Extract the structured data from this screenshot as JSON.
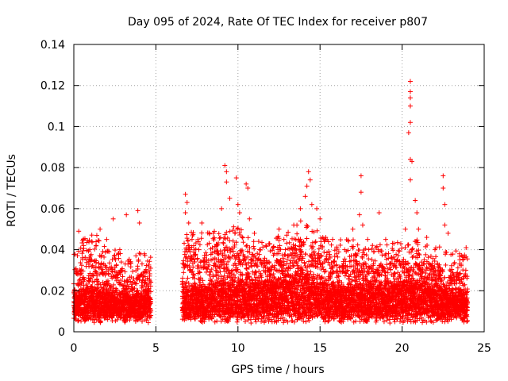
{
  "chart_data": {
    "type": "scatter",
    "title": "Day 095 of 2024, Rate Of TEC Index for receiver p807",
    "xlabel": "GPS time / hours",
    "ylabel": "ROTI / TECUs",
    "xlim": [
      0,
      25
    ],
    "ylim": [
      0,
      0.14
    ],
    "x_ticks": [
      "0",
      "5",
      "10",
      "15",
      "20",
      "25"
    ],
    "y_ticks": [
      "0",
      "0.02",
      "0.04",
      "0.06",
      "0.08",
      "0.1",
      "0.12",
      "0.14"
    ],
    "grid": true,
    "marker": "+",
    "color": "#ff0000",
    "data_gap_hours": [
      4.7,
      6.6
    ],
    "envelope": [
      {
        "x": 0.0,
        "base": 0.015,
        "top": 0.03
      },
      {
        "x": 0.5,
        "base": 0.016,
        "top": 0.035
      },
      {
        "x": 1.0,
        "base": 0.017,
        "top": 0.038
      },
      {
        "x": 1.5,
        "base": 0.016,
        "top": 0.035
      },
      {
        "x": 2.0,
        "base": 0.015,
        "top": 0.032
      },
      {
        "x": 2.5,
        "base": 0.014,
        "top": 0.03
      },
      {
        "x": 3.0,
        "base": 0.014,
        "top": 0.028
      },
      {
        "x": 3.5,
        "base": 0.013,
        "top": 0.025
      },
      {
        "x": 4.0,
        "base": 0.014,
        "top": 0.03
      },
      {
        "x": 4.6,
        "base": 0.015,
        "top": 0.035
      },
      {
        "x": 6.7,
        "base": 0.018,
        "top": 0.04
      },
      {
        "x": 8.0,
        "base": 0.018,
        "top": 0.038
      },
      {
        "x": 9.0,
        "base": 0.02,
        "top": 0.04
      },
      {
        "x": 10.0,
        "base": 0.02,
        "top": 0.042
      },
      {
        "x": 11.0,
        "base": 0.02,
        "top": 0.035
      },
      {
        "x": 12.0,
        "base": 0.02,
        "top": 0.036
      },
      {
        "x": 13.0,
        "base": 0.022,
        "top": 0.04
      },
      {
        "x": 14.0,
        "base": 0.025,
        "top": 0.045
      },
      {
        "x": 15.0,
        "base": 0.02,
        "top": 0.038
      },
      {
        "x": 16.0,
        "base": 0.018,
        "top": 0.035
      },
      {
        "x": 17.0,
        "base": 0.018,
        "top": 0.035
      },
      {
        "x": 18.0,
        "base": 0.018,
        "top": 0.032
      },
      {
        "x": 19.0,
        "base": 0.018,
        "top": 0.034
      },
      {
        "x": 20.0,
        "base": 0.02,
        "top": 0.035
      },
      {
        "x": 21.0,
        "base": 0.02,
        "top": 0.036
      },
      {
        "x": 22.0,
        "base": 0.018,
        "top": 0.032
      },
      {
        "x": 23.0,
        "base": 0.016,
        "top": 0.03
      },
      {
        "x": 24.0,
        "base": 0.015,
        "top": 0.028
      }
    ],
    "spikes": [
      {
        "x": 0.3,
        "y": 0.049
      },
      {
        "x": 0.6,
        "y": 0.042
      },
      {
        "x": 1.1,
        "y": 0.044
      },
      {
        "x": 1.4,
        "y": 0.047
      },
      {
        "x": 1.6,
        "y": 0.05
      },
      {
        "x": 2.0,
        "y": 0.045
      },
      {
        "x": 2.4,
        "y": 0.055
      },
      {
        "x": 2.8,
        "y": 0.04
      },
      {
        "x": 3.2,
        "y": 0.057
      },
      {
        "x": 3.9,
        "y": 0.059
      },
      {
        "x": 4.0,
        "y": 0.053
      },
      {
        "x": 4.3,
        "y": 0.038
      },
      {
        "x": 6.8,
        "y": 0.067
      },
      {
        "x": 6.9,
        "y": 0.063
      },
      {
        "x": 6.8,
        "y": 0.058
      },
      {
        "x": 7.0,
        "y": 0.053
      },
      {
        "x": 7.2,
        "y": 0.045
      },
      {
        "x": 7.8,
        "y": 0.053
      },
      {
        "x": 8.5,
        "y": 0.048
      },
      {
        "x": 9.0,
        "y": 0.06
      },
      {
        "x": 9.2,
        "y": 0.081
      },
      {
        "x": 9.3,
        "y": 0.078
      },
      {
        "x": 9.3,
        "y": 0.073
      },
      {
        "x": 9.5,
        "y": 0.065
      },
      {
        "x": 9.9,
        "y": 0.075
      },
      {
        "x": 10.0,
        "y": 0.062
      },
      {
        "x": 10.1,
        "y": 0.058
      },
      {
        "x": 10.5,
        "y": 0.072
      },
      {
        "x": 10.6,
        "y": 0.07
      },
      {
        "x": 10.7,
        "y": 0.055
      },
      {
        "x": 11.0,
        "y": 0.048
      },
      {
        "x": 11.7,
        "y": 0.042
      },
      {
        "x": 12.5,
        "y": 0.05
      },
      {
        "x": 12.8,
        "y": 0.045
      },
      {
        "x": 13.4,
        "y": 0.052
      },
      {
        "x": 13.8,
        "y": 0.06
      },
      {
        "x": 14.1,
        "y": 0.066
      },
      {
        "x": 14.2,
        "y": 0.071
      },
      {
        "x": 14.3,
        "y": 0.078
      },
      {
        "x": 14.4,
        "y": 0.074
      },
      {
        "x": 14.5,
        "y": 0.062
      },
      {
        "x": 14.8,
        "y": 0.06
      },
      {
        "x": 15.0,
        "y": 0.055
      },
      {
        "x": 15.3,
        "y": 0.045
      },
      {
        "x": 16.0,
        "y": 0.038
      },
      {
        "x": 16.5,
        "y": 0.04
      },
      {
        "x": 17.0,
        "y": 0.05
      },
      {
        "x": 17.5,
        "y": 0.076
      },
      {
        "x": 17.5,
        "y": 0.068
      },
      {
        "x": 17.4,
        "y": 0.057
      },
      {
        "x": 17.6,
        "y": 0.052
      },
      {
        "x": 17.9,
        "y": 0.045
      },
      {
        "x": 18.6,
        "y": 0.058
      },
      {
        "x": 19.0,
        "y": 0.045
      },
      {
        "x": 19.5,
        "y": 0.043
      },
      {
        "x": 20.2,
        "y": 0.05
      },
      {
        "x": 20.5,
        "y": 0.122
      },
      {
        "x": 20.5,
        "y": 0.117
      },
      {
        "x": 20.5,
        "y": 0.114
      },
      {
        "x": 20.5,
        "y": 0.11
      },
      {
        "x": 20.5,
        "y": 0.102
      },
      {
        "x": 20.4,
        "y": 0.097
      },
      {
        "x": 20.5,
        "y": 0.084
      },
      {
        "x": 20.6,
        "y": 0.083
      },
      {
        "x": 20.5,
        "y": 0.074
      },
      {
        "x": 20.8,
        "y": 0.064
      },
      {
        "x": 20.9,
        "y": 0.058
      },
      {
        "x": 21.0,
        "y": 0.05
      },
      {
        "x": 21.5,
        "y": 0.046
      },
      {
        "x": 22.0,
        "y": 0.04
      },
      {
        "x": 22.5,
        "y": 0.076
      },
      {
        "x": 22.5,
        "y": 0.07
      },
      {
        "x": 22.6,
        "y": 0.062
      },
      {
        "x": 22.6,
        "y": 0.052
      },
      {
        "x": 22.8,
        "y": 0.048
      },
      {
        "x": 23.5,
        "y": 0.038
      },
      {
        "x": 23.9,
        "y": 0.041
      },
      {
        "x": 23.7,
        "y": 0.035
      }
    ]
  }
}
